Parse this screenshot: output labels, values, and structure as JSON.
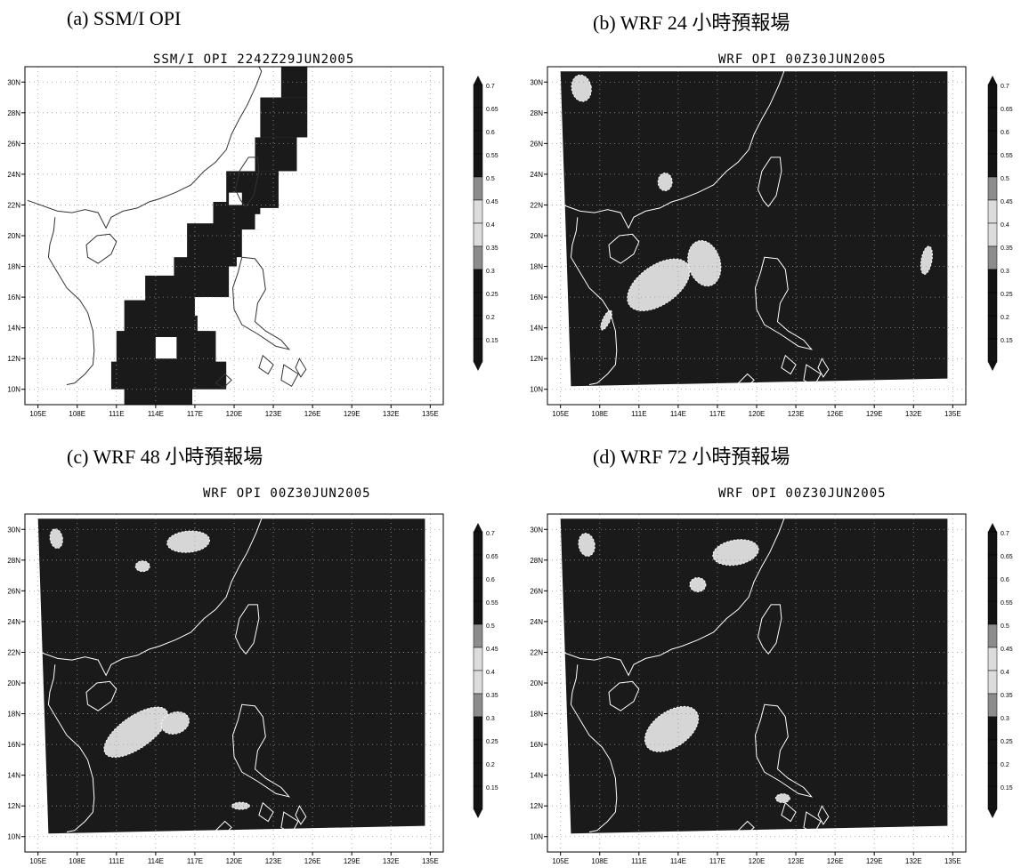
{
  "panels": [
    {
      "id": "a",
      "caption": "(a) SSM/I OPI",
      "subtitle": "SSM/I OPI 2242Z29JUN2005"
    },
    {
      "id": "b",
      "caption": "(b) WRF 24 小時預報場",
      "subtitle": "WRF OPI 00Z30JUN2005"
    },
    {
      "id": "c",
      "caption": "(c) WRF 48 小時預報場",
      "subtitle": "WRF OPI 00Z30JUN2005"
    },
    {
      "id": "d",
      "caption": "(d) WRF 72 小時預報場",
      "subtitle": "WRF OPI 00Z30JUN2005"
    }
  ],
  "map": {
    "lon_ticks": [
      "105E",
      "108E",
      "111E",
      "114E",
      "117E",
      "120E",
      "123E",
      "126E",
      "129E",
      "132E",
      "135E"
    ],
    "lat_ticks": [
      "30N",
      "28N",
      "26N",
      "24N",
      "22N",
      "20N",
      "18N",
      "16N",
      "14N",
      "12N",
      "10N"
    ]
  },
  "colorbar": {
    "levels": [
      "0.7",
      "0.65",
      "0.6",
      "0.55",
      "0.5",
      "0.45",
      "0.4",
      "0.35",
      "0.3",
      "0.25",
      "0.2",
      "0.15"
    ]
  },
  "colors": {
    "field": "#1a1a1a",
    "coast": "#333333",
    "grid": "#9a9a9a",
    "background": "#ffffff"
  }
}
